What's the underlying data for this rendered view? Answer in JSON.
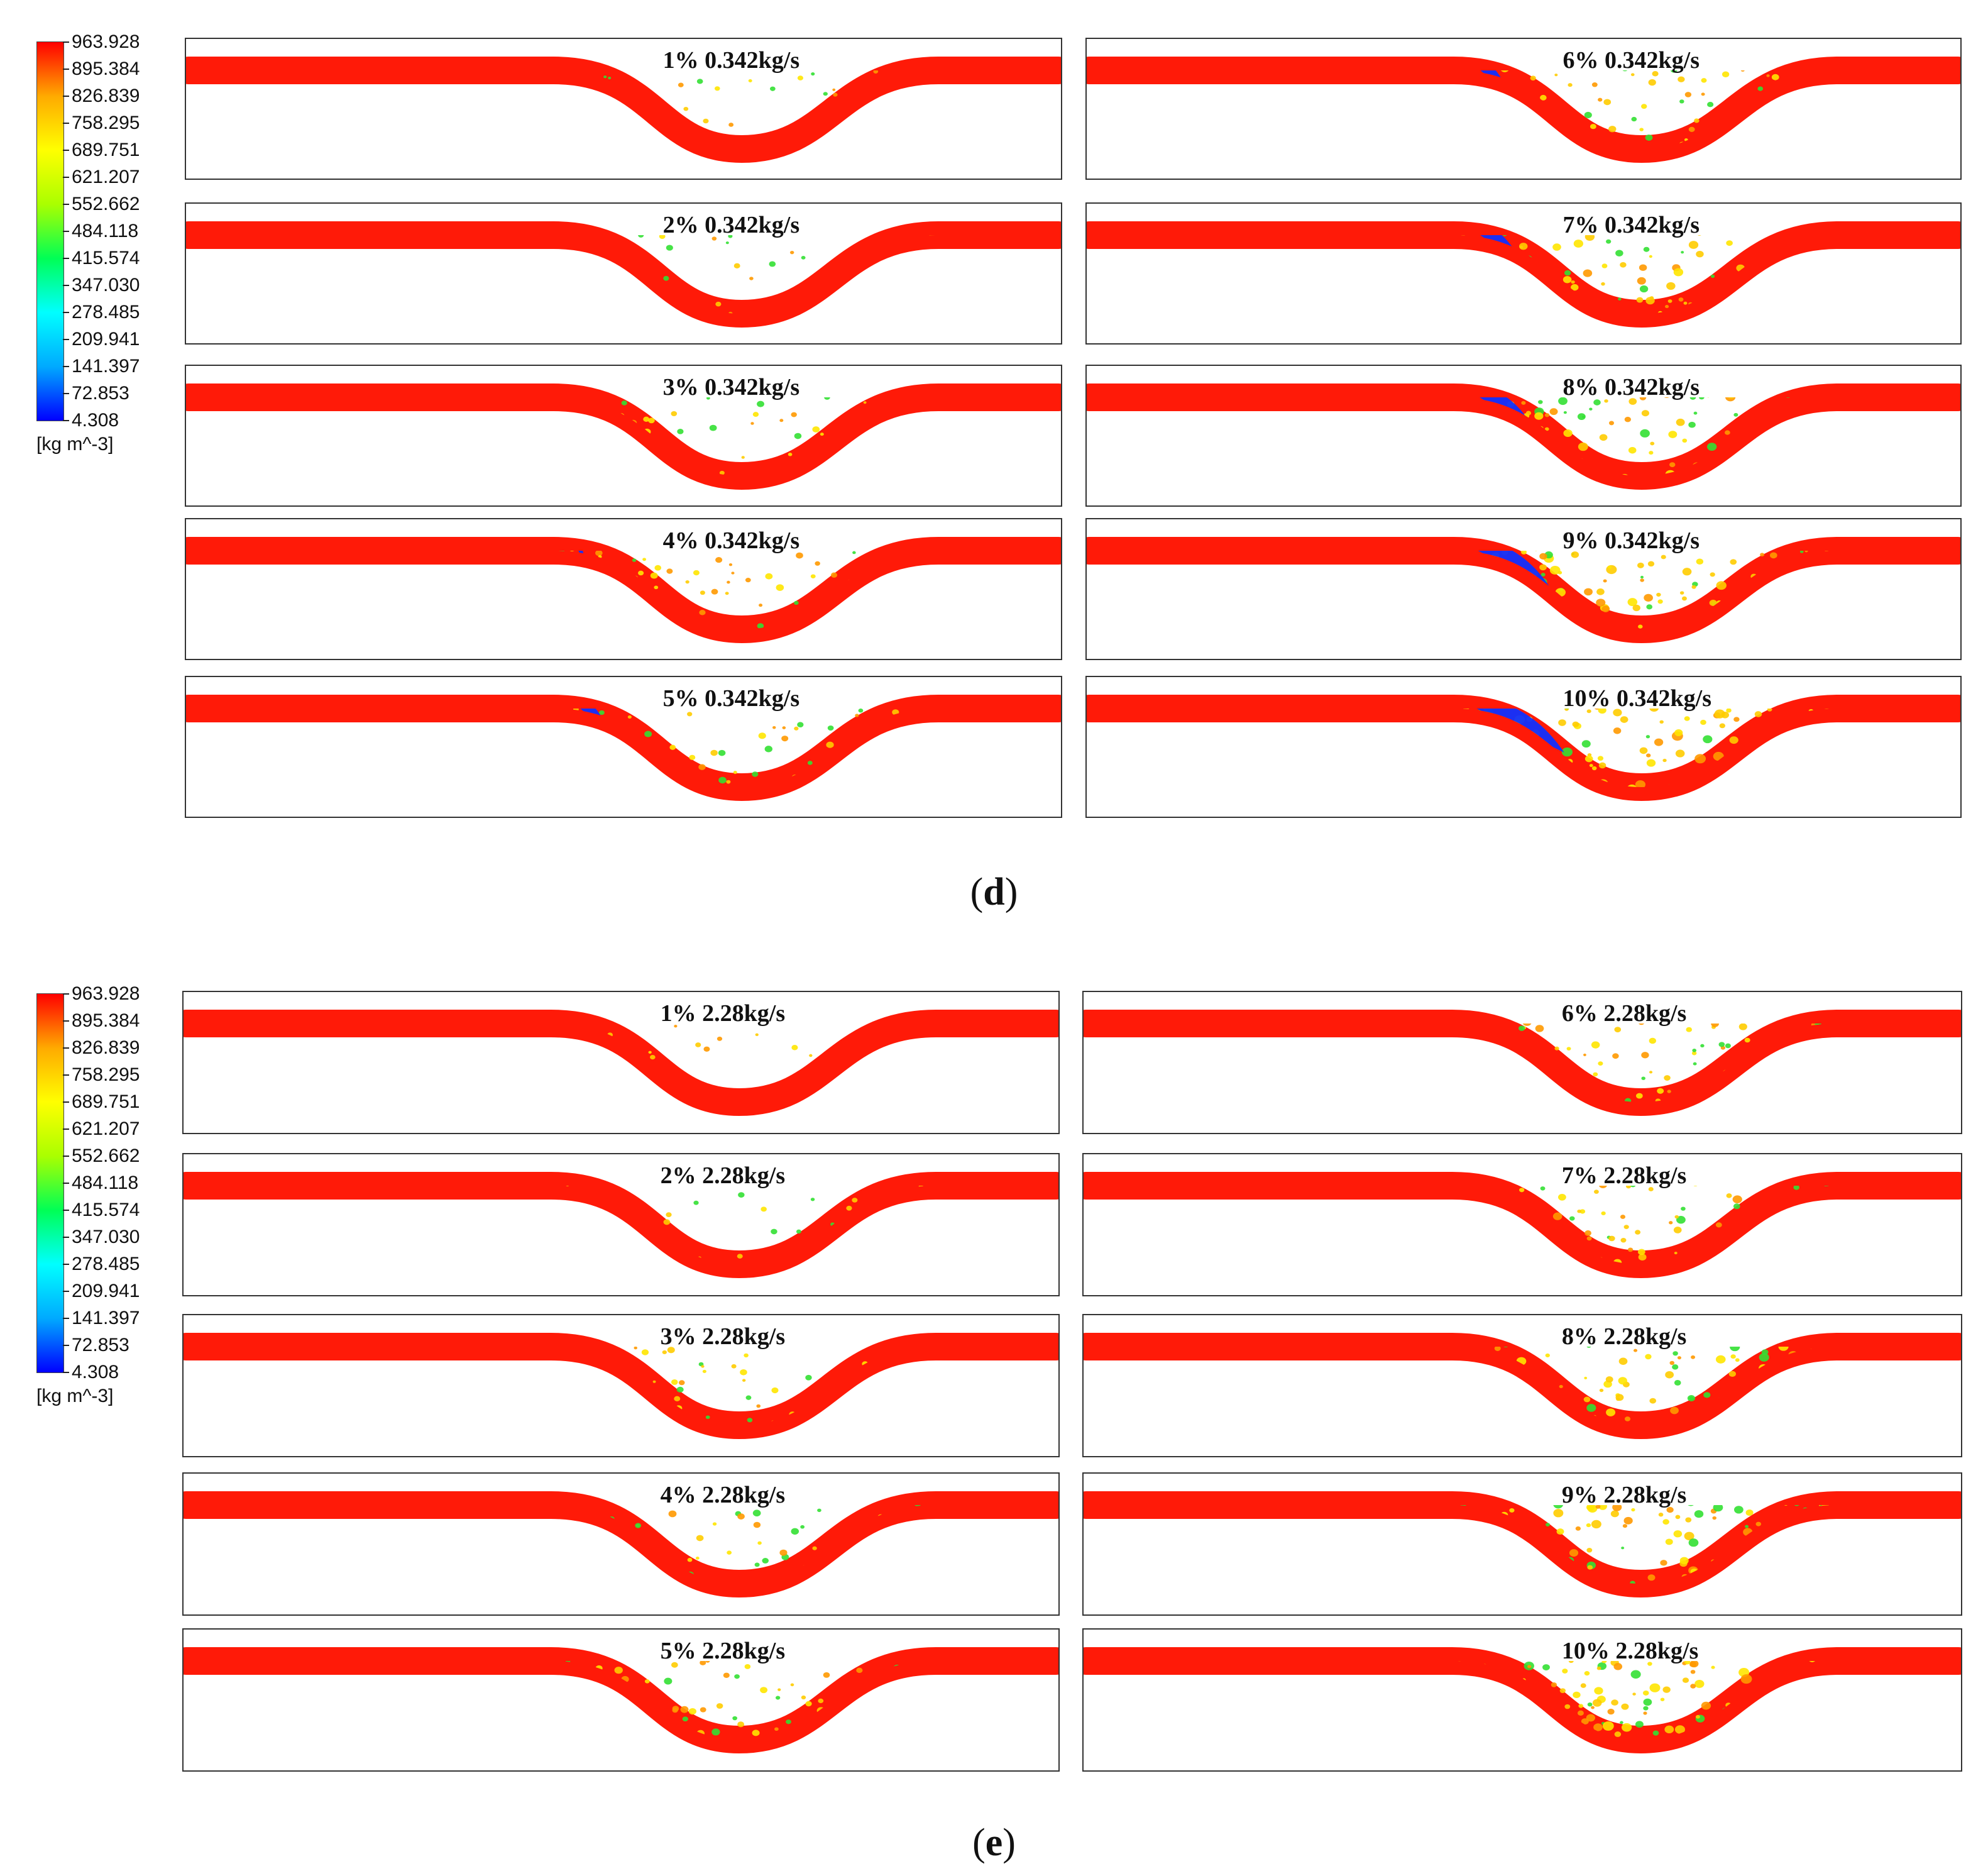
{
  "colors": {
    "liquid": "#ff1a08",
    "accents": [
      "#ffcc00",
      "#ffe600",
      "#33e033",
      "#ff9900"
    ],
    "gas": "#1030ff",
    "scale": [
      "#0000ff",
      "#00aaff",
      "#00ffff",
      "#00ff55",
      "#aaff00",
      "#ffff00",
      "#ffaa00",
      "#ff0000"
    ]
  },
  "colorbar": {
    "ticks": [
      "963.928",
      "895.384",
      "826.839",
      "758.295",
      "689.751",
      "621.207",
      "552.662",
      "484.118",
      "415.574",
      "347.030",
      "278.485",
      "209.941",
      "141.397",
      "72.853",
      "4.308"
    ],
    "unit": "[kg m^-3]"
  },
  "sections": [
    {
      "caption_letter": "d",
      "panels": [
        {
          "label": "1% 0.342kg/s",
          "gas_fraction": 1,
          "gas_pocket": 0
        },
        {
          "label": "2% 0.342kg/s",
          "gas_fraction": 2,
          "gas_pocket": 0
        },
        {
          "label": "3% 0.342kg/s",
          "gas_fraction": 3,
          "gas_pocket": 0
        },
        {
          "label": "4% 0.342kg/s",
          "gas_fraction": 4,
          "gas_pocket": 0.1
        },
        {
          "label": "5% 0.342kg/s",
          "gas_fraction": 5,
          "gas_pocket": 0.35
        },
        {
          "label": "6% 0.342kg/s",
          "gas_fraction": 6,
          "gas_pocket": 0.35
        },
        {
          "label": "7% 0.342kg/s",
          "gas_fraction": 7,
          "gas_pocket": 0.5
        },
        {
          "label": "8% 0.342kg/s",
          "gas_fraction": 8,
          "gas_pocket": 0.65
        },
        {
          "label": "9% 0.342kg/s",
          "gas_fraction": 9,
          "gas_pocket": 0.85
        },
        {
          "label": "10% 0.342kg/s",
          "gas_fraction": 10,
          "gas_pocket": 1
        }
      ]
    },
    {
      "caption_letter": "e",
      "panels": [
        {
          "label": "1% 2.28kg/s",
          "gas_fraction": 1,
          "gas_pocket": 0
        },
        {
          "label": "2% 2.28kg/s",
          "gas_fraction": 2,
          "gas_pocket": 0
        },
        {
          "label": "3% 2.28kg/s",
          "gas_fraction": 3,
          "gas_pocket": 0
        },
        {
          "label": "4% 2.28kg/s",
          "gas_fraction": 4,
          "gas_pocket": 0
        },
        {
          "label": "5% 2.28kg/s",
          "gas_fraction": 5,
          "gas_pocket": 0
        },
        {
          "label": "6% 2.28kg/s",
          "gas_fraction": 6,
          "gas_pocket": 0
        },
        {
          "label": "7% 2.28kg/s",
          "gas_fraction": 7,
          "gas_pocket": 0
        },
        {
          "label": "8% 2.28kg/s",
          "gas_fraction": 8,
          "gas_pocket": 0
        },
        {
          "label": "9% 2.28kg/s",
          "gas_fraction": 9,
          "gas_pocket": 0
        },
        {
          "label": "10% 2.28kg/s",
          "gas_fraction": 10,
          "gas_pocket": 0
        }
      ]
    }
  ]
}
